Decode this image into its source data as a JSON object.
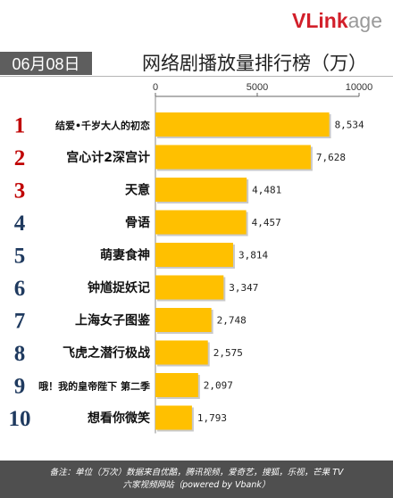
{
  "logo": {
    "main": "VLink",
    "suffix": "age"
  },
  "header": {
    "date": "06月08日",
    "title": "网络剧播放量排行榜（万）"
  },
  "chart_data": {
    "type": "bar",
    "orientation": "horizontal",
    "title": "网络剧播放量排行榜（万）",
    "ranks": [
      "1",
      "2",
      "3",
      "4",
      "5",
      "6",
      "7",
      "8",
      "9",
      "10"
    ],
    "categories": [
      "结爱•千岁大人的初恋",
      "宫心计2深宫计",
      "天意",
      "骨语",
      "萌妻食神",
      "钟馗捉妖记",
      "上海女子图鉴",
      "飞虎之潜行极战",
      "哦！我的皇帝陛下 第二季",
      "想看你微笑"
    ],
    "values": [
      8534,
      7628,
      4481,
      4457,
      3814,
      3347,
      2748,
      2575,
      2097,
      1793
    ],
    "value_labels": [
      "8,534",
      "7,628",
      "4,481",
      "4,457",
      "3,814",
      "3,347",
      "2,748",
      "2,575",
      "2,097",
      "1,793"
    ],
    "xlim": [
      0,
      10000
    ],
    "x_ticks": [
      0,
      5000,
      10000
    ],
    "x_tick_labels": [
      "0",
      "5000",
      "10000"
    ],
    "axis_position": "top",
    "bar_color": "#ffc000",
    "rank_color": "#c00000",
    "grid": false
  },
  "footer": {
    "line1": "备注：单位（万次）数据来自优酷，腾讯视频，爱奇艺，搜狐，乐视，芒果 TV",
    "line2": "六家视频网站（powered by Vbank）"
  }
}
